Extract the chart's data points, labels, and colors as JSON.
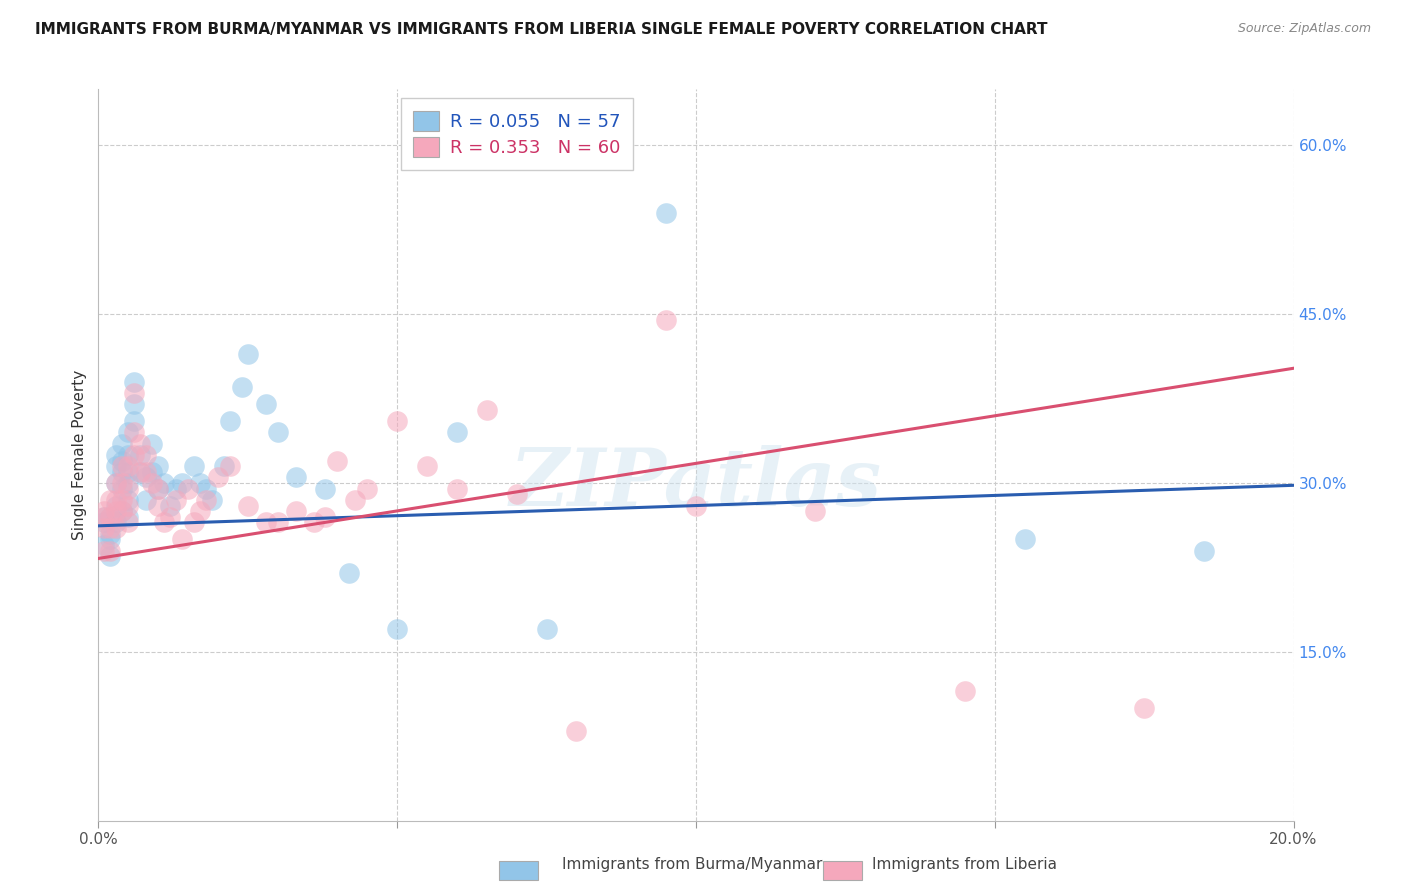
{
  "title": "IMMIGRANTS FROM BURMA/MYANMAR VS IMMIGRANTS FROM LIBERIA SINGLE FEMALE POVERTY CORRELATION CHART",
  "source": "Source: ZipAtlas.com",
  "ylabel": "Single Female Poverty",
  "xlim": [
    0.0,
    0.2
  ],
  "ylim": [
    0.0,
    0.65
  ],
  "blue_R": 0.055,
  "blue_N": 57,
  "pink_R": 0.353,
  "pink_N": 60,
  "blue_color": "#92c5e8",
  "pink_color": "#f5a8bc",
  "blue_line_color": "#2a5db0",
  "pink_line_color": "#d94f70",
  "legend_label_blue": "Immigrants from Burma/Myanmar",
  "legend_label_pink": "Immigrants from Liberia",
  "watermark": "ZIPatlas",
  "background_color": "#ffffff",
  "grid_color": "#cccccc",
  "blue_x": [
    0.001,
    0.001,
    0.001,
    0.002,
    0.002,
    0.002,
    0.002,
    0.003,
    0.003,
    0.003,
    0.003,
    0.003,
    0.004,
    0.004,
    0.004,
    0.004,
    0.004,
    0.005,
    0.005,
    0.005,
    0.005,
    0.005,
    0.005,
    0.006,
    0.006,
    0.006,
    0.007,
    0.007,
    0.008,
    0.008,
    0.009,
    0.009,
    0.01,
    0.01,
    0.011,
    0.012,
    0.013,
    0.014,
    0.016,
    0.017,
    0.018,
    0.019,
    0.021,
    0.022,
    0.024,
    0.025,
    0.028,
    0.03,
    0.033,
    0.038,
    0.042,
    0.05,
    0.06,
    0.075,
    0.095,
    0.155,
    0.185
  ],
  "blue_y": [
    0.245,
    0.265,
    0.27,
    0.235,
    0.255,
    0.27,
    0.25,
    0.265,
    0.28,
    0.3,
    0.315,
    0.325,
    0.275,
    0.295,
    0.31,
    0.32,
    0.335,
    0.27,
    0.285,
    0.3,
    0.31,
    0.325,
    0.345,
    0.355,
    0.37,
    0.39,
    0.31,
    0.325,
    0.285,
    0.305,
    0.31,
    0.335,
    0.295,
    0.315,
    0.3,
    0.28,
    0.295,
    0.3,
    0.315,
    0.3,
    0.295,
    0.285,
    0.315,
    0.355,
    0.385,
    0.415,
    0.37,
    0.345,
    0.305,
    0.295,
    0.22,
    0.17,
    0.345,
    0.17,
    0.54,
    0.25,
    0.24
  ],
  "pink_x": [
    0.001,
    0.001,
    0.001,
    0.001,
    0.002,
    0.002,
    0.002,
    0.002,
    0.003,
    0.003,
    0.003,
    0.003,
    0.004,
    0.004,
    0.004,
    0.004,
    0.005,
    0.005,
    0.005,
    0.005,
    0.006,
    0.006,
    0.006,
    0.007,
    0.007,
    0.008,
    0.008,
    0.009,
    0.01,
    0.01,
    0.011,
    0.012,
    0.013,
    0.014,
    0.015,
    0.016,
    0.017,
    0.018,
    0.02,
    0.022,
    0.025,
    0.028,
    0.03,
    0.033,
    0.036,
    0.038,
    0.04,
    0.043,
    0.045,
    0.05,
    0.055,
    0.06,
    0.065,
    0.07,
    0.08,
    0.095,
    0.1,
    0.12,
    0.145,
    0.175
  ],
  "pink_y": [
    0.24,
    0.26,
    0.27,
    0.275,
    0.24,
    0.26,
    0.27,
    0.285,
    0.26,
    0.275,
    0.285,
    0.3,
    0.275,
    0.285,
    0.3,
    0.315,
    0.265,
    0.28,
    0.295,
    0.315,
    0.325,
    0.345,
    0.38,
    0.31,
    0.335,
    0.31,
    0.325,
    0.3,
    0.28,
    0.295,
    0.265,
    0.27,
    0.285,
    0.25,
    0.295,
    0.265,
    0.275,
    0.285,
    0.305,
    0.315,
    0.28,
    0.265,
    0.265,
    0.275,
    0.265,
    0.27,
    0.32,
    0.285,
    0.295,
    0.355,
    0.315,
    0.295,
    0.365,
    0.29,
    0.08,
    0.445,
    0.28,
    0.275,
    0.115,
    0.1
  ]
}
